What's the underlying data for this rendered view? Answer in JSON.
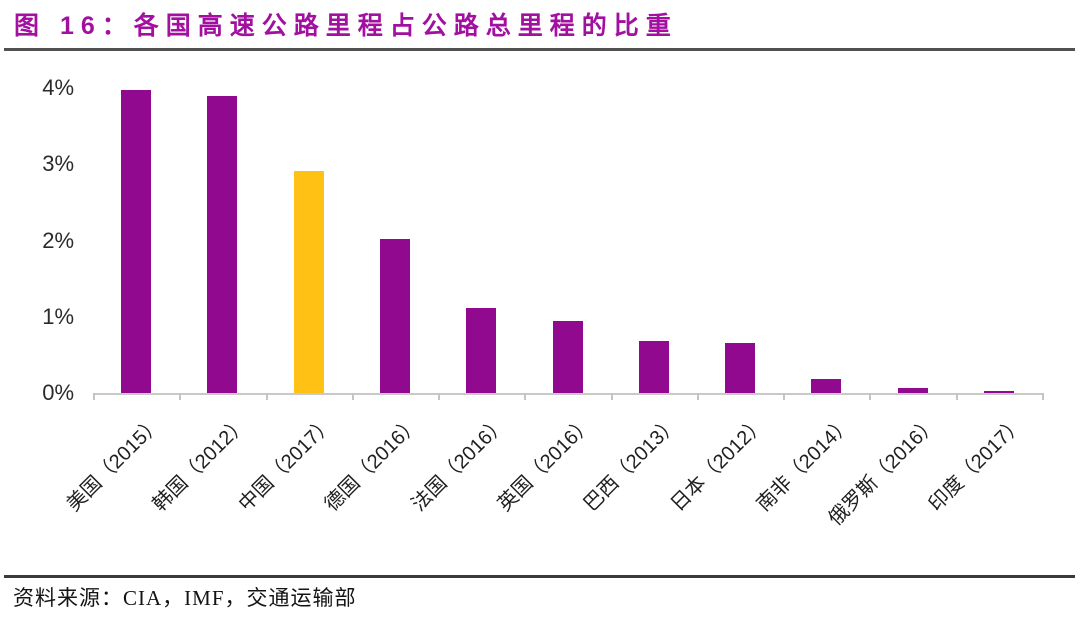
{
  "header": {
    "title": "图 16：各国高速公路里程占公路总里程的比重"
  },
  "footer": {
    "source": "资料来源：CIA，IMF，交通运输部"
  },
  "colors": {
    "title": "#A210A0",
    "bar_default": "#91098E",
    "bar_highlight": "#FFC113",
    "axis_line": "#C9C9C9",
    "label_text": "#1F1F1F",
    "rule": "#3A3A3A"
  },
  "chart_data": {
    "type": "bar",
    "title": "各国高速公路里程占公路总里程的比重",
    "categories": [
      "美国（2015）",
      "韩国（2012）",
      "中国（2017）",
      "德国（2016）",
      "法国（2016）",
      "英国（2016）",
      "巴西（2013）",
      "日本（2012）",
      "南非（2014）",
      "俄罗斯（2016）",
      "印度（2017）"
    ],
    "values": [
      3.97,
      3.9,
      2.91,
      2.02,
      1.12,
      0.94,
      0.68,
      0.65,
      0.18,
      0.06,
      0.03
    ],
    "highlight_index": 2,
    "highlight_category": "中国（2017）",
    "unit": "%",
    "xlabel": "",
    "ylabel": "",
    "ylim": [
      0,
      4
    ],
    "yticks": [
      "0%",
      "1%",
      "2%",
      "3%",
      "4%"
    ],
    "ytick_values": [
      0,
      1,
      2,
      3,
      4
    ],
    "grid": false,
    "legend": null,
    "x_tick_rotation_deg": 45
  }
}
